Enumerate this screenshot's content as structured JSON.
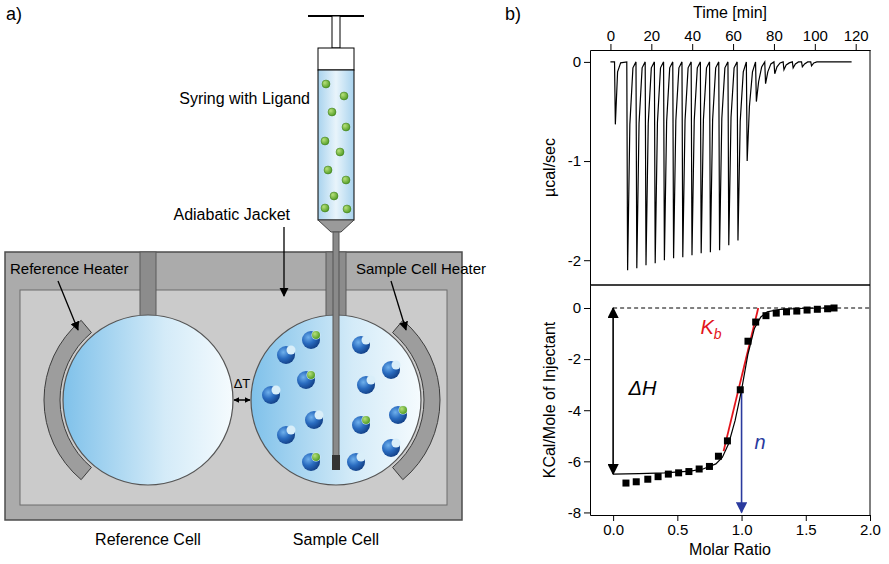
{
  "figure_labels": {
    "a": "a)",
    "b": "b)"
  },
  "diagram": {
    "syringe": "Syring with Ligand",
    "jacket": "Adiabatic Jacket",
    "reference_heater": "Reference Heater",
    "sample_heater": "Sample Cell Heater",
    "delta_t": "ΔT",
    "reference_cell": "Reference Cell",
    "sample_cell": "Sample Cell"
  },
  "chart_data": [
    {
      "type": "line",
      "x_label": "Time [min]",
      "y_label": "µcal/sec",
      "color": "#000000",
      "xlim": [
        -10,
        127
      ],
      "ylim": [
        -2.25,
        0.12
      ],
      "xticks": [
        0,
        20,
        40,
        60,
        80,
        100,
        120
      ],
      "yticks": [
        0,
        -1,
        -2
      ],
      "x": [
        0,
        2,
        2.4,
        3.5,
        5,
        8,
        8.4,
        9.5,
        11,
        12.5,
        12.9,
        14,
        15.5,
        17,
        17.4,
        18.5,
        20,
        21.5,
        21.9,
        23,
        24.5,
        26,
        26.4,
        27.5,
        29,
        30.5,
        30.9,
        32,
        33.5,
        35,
        35.4,
        36.5,
        38,
        39.5,
        39.9,
        41,
        42.5,
        44,
        44.4,
        45.5,
        47,
        48.5,
        48.9,
        50,
        51.5,
        53,
        53.4,
        54.5,
        56,
        57.5,
        57.9,
        59,
        60.5,
        62,
        62.4,
        63.5,
        65,
        66.5,
        66.9,
        68,
        69.5,
        71,
        71.4,
        72.5,
        74,
        75.5,
        75.9,
        77,
        78.5,
        80,
        80.4,
        81.5,
        83,
        84.5,
        84.9,
        86,
        87.5,
        89,
        89.4,
        90.5,
        92,
        93.5,
        93.9,
        95,
        96.5,
        98,
        98.4,
        99.5,
        101,
        118
      ],
      "values": [
        0,
        0,
        -0.63,
        -0.1,
        -0.01,
        0,
        -2.1,
        -0.63,
        -0.06,
        0,
        -2.08,
        -0.62,
        -0.06,
        0,
        -2.05,
        -0.62,
        -0.06,
        0,
        -2.03,
        -0.61,
        -0.06,
        0,
        -2.0,
        -0.6,
        -0.06,
        0,
        -1.98,
        -0.59,
        -0.06,
        0,
        -1.97,
        -0.59,
        -0.06,
        0,
        -1.95,
        -0.59,
        -0.06,
        0,
        -1.93,
        -0.58,
        -0.06,
        0,
        -1.92,
        -0.58,
        -0.06,
        0,
        -1.9,
        -0.57,
        -0.06,
        0,
        -1.85,
        -0.56,
        -0.06,
        0,
        -1.8,
        -0.6,
        -0.1,
        0,
        -1.0,
        -0.45,
        -0.1,
        0,
        -0.4,
        -0.2,
        -0.05,
        0,
        -0.22,
        -0.1,
        -0.02,
        0,
        -0.12,
        -0.05,
        -0.01,
        0,
        -0.08,
        -0.03,
        -0.01,
        0,
        -0.06,
        -0.02,
        0,
        0,
        -0.05,
        -0.02,
        0,
        0,
        -0.04,
        -0.01,
        0,
        0
      ]
    },
    {
      "type": "scatter",
      "x_label": "Molar Ratio",
      "y_label": "KCal/Mole of Injectant",
      "xlim": [
        -0.18,
        2.0
      ],
      "ylim": [
        -8.1,
        0.9
      ],
      "xticks": [
        {
          "value": 0,
          "label": "0.0"
        },
        0.5,
        {
          "value": 1,
          "label": "1.0"
        },
        1.5,
        {
          "value": 2,
          "label": "2.0"
        }
      ],
      "yticks": [
        0,
        -2,
        -4,
        -6,
        -8
      ],
      "series": [
        {
          "type": "scatter",
          "marker": "square",
          "color": "#000000",
          "x": [
            0.1,
            0.18,
            0.27,
            0.35,
            0.43,
            0.51,
            0.59,
            0.67,
            0.75,
            0.82,
            0.89,
            0.99,
            1.05,
            1.11,
            1.19,
            1.27,
            1.35,
            1.43,
            1.51,
            1.59,
            1.67,
            1.72
          ],
          "values": [
            -6.85,
            -6.8,
            -6.7,
            -6.6,
            -6.5,
            -6.45,
            -6.4,
            -6.3,
            -6.2,
            -5.8,
            -5.2,
            -3.2,
            -1.3,
            -0.55,
            -0.3,
            -0.2,
            -0.15,
            -0.12,
            -0.08,
            -0.05,
            -0.03,
            0
          ]
        },
        {
          "type": "line",
          "color": "#000000",
          "x": [
            0,
            0.2,
            0.4,
            0.6,
            0.7,
            0.8,
            0.85,
            0.9,
            0.95,
            1.0,
            1.05,
            1.1,
            1.15,
            1.2,
            1.3,
            1.5,
            1.72
          ],
          "values": [
            -6.5,
            -6.48,
            -6.45,
            -6.38,
            -6.3,
            -6.1,
            -5.85,
            -5.3,
            -4.4,
            -3.2,
            -1.8,
            -0.8,
            -0.35,
            -0.15,
            -0.05,
            -0.01,
            0
          ]
        }
      ],
      "annotations": [
        {
          "type": "hline",
          "y": 0,
          "x": [
            0,
            2
          ],
          "line_style": "dashed",
          "color": "#000000"
        },
        {
          "type": "double_arrow",
          "text": "ΔH",
          "x": 0,
          "y": [
            0,
            -6.5
          ],
          "text_x": 0.12,
          "text_y": -3.4,
          "color": "#000000"
        },
        {
          "type": "line",
          "text": "K",
          "subscript": "b",
          "x": [
            0.86,
            1.13
          ],
          "y": [
            -5.6,
            0
          ],
          "text_x": 0.68,
          "text_y": -1.0,
          "color": "#e3141c"
        },
        {
          "type": "arrow",
          "text": "n",
          "x": 1.0,
          "y": [
            -3.2,
            -8.0
          ],
          "text_x": 1.1,
          "text_y": -5.5,
          "color": "#2a3a9e"
        }
      ]
    }
  ]
}
